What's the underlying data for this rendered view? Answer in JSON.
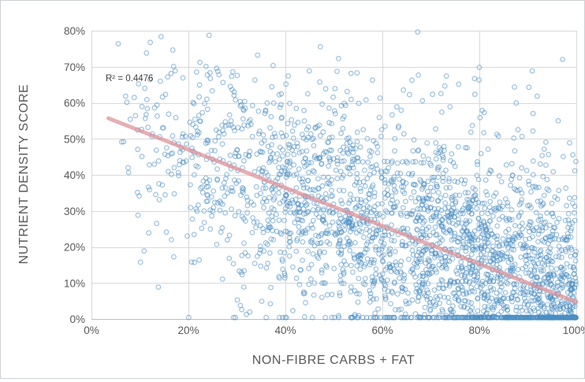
{
  "chart_data": {
    "type": "scatter",
    "title": "",
    "xlabel": "NON-FIBRE CARBS + FAT",
    "ylabel": "NUTRIENT DENSITY SCORE",
    "annotation": "R² = 0.4476",
    "r_squared": 0.4476,
    "xlim": [
      0,
      1
    ],
    "ylim": [
      0,
      0.8
    ],
    "x_ticks": [
      "0%",
      "20%",
      "40%",
      "60%",
      "80%",
      "100%"
    ],
    "y_ticks": [
      "0%",
      "10%",
      "20%",
      "30%",
      "40%",
      "50%",
      "60%",
      "70%",
      "80%"
    ],
    "grid": true,
    "legend_position": "none",
    "colors": {
      "grid": "#d9d9d9",
      "axis": "#bfbfbf",
      "tick_text": "#595959",
      "title_text": "#595959"
    },
    "trendline": {
      "x1": 0.035,
      "y1": 0.557,
      "x2": 1.0,
      "y2": 0.047,
      "color": "#df939a",
      "opacity": 0.75,
      "width": 5
    },
    "points": {
      "count": 2800,
      "seed": 42,
      "x_min": 0.04,
      "x_max": 1.0,
      "x_skew": 0.55,
      "intercept": 0.574,
      "slope": -0.525,
      "noise_sd": 0.14,
      "noise_sd2": 0.27,
      "mix": 0.16,
      "y_min": 0.004,
      "y_max": 0.8,
      "marker_color": "#4a8ec2",
      "marker_opacity": 0.55,
      "marker_radius": 2.8,
      "marker_stroke_width": 1.2
    }
  }
}
